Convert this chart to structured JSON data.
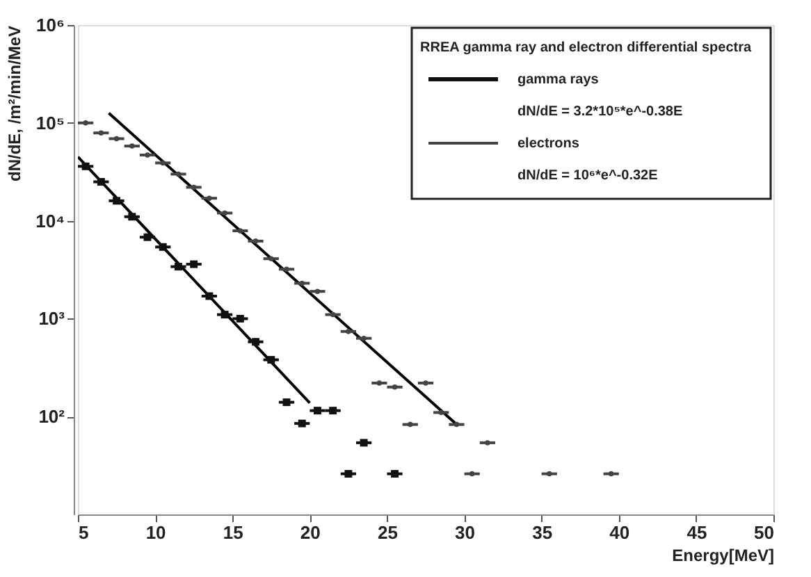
{
  "chart_data": {
    "type": "scatter",
    "xlabel": "Energy[MeV]",
    "ylabel": "dN/dE, /m²/min/MeV",
    "log": "y",
    "legend": "top right",
    "legend_title": "RREA gamma ray and electron differential spectra",
    "xlim": [
      5,
      50
    ],
    "xticks": [
      5,
      10,
      15,
      20,
      25,
      30,
      35,
      40,
      45,
      50
    ],
    "ylim": [
      10,
      1000000
    ],
    "yticks": [
      {
        "value": 100,
        "label": "10²"
      },
      {
        "value": 1000,
        "label": "10³"
      },
      {
        "value": 10000,
        "label": "10⁴"
      },
      {
        "value": 100000,
        "label": "10⁵"
      },
      {
        "value": 1000000,
        "label": "10⁶"
      }
    ],
    "annotations": [
      "dN/dE = 3.2*10⁵*e^-0.38E",
      "dN/dE = 10⁶*e^-0.32E"
    ],
    "series": [
      {
        "name": "gamma rays",
        "marker": "square",
        "color": "#111111",
        "x": [
          5.5,
          6.5,
          7.5,
          8.5,
          9.5,
          10.5,
          11.5,
          12.5,
          13.5,
          14.5,
          15.5,
          16.5,
          17.5,
          18.5,
          19.5,
          20.5,
          21.5,
          22.5,
          23.5,
          25.5
        ],
        "values": [
          36000,
          25000,
          16000,
          11000,
          6800,
          5400,
          3400,
          3600,
          1700,
          1100,
          1000,
          580,
          380,
          140,
          85,
          115,
          115,
          26,
          54,
          26
        ],
        "xerrors": [
          0.5,
          0.5,
          0.5,
          0.5,
          0.5,
          0.5,
          0.5,
          0.5,
          0.5,
          0.5,
          0.5,
          0.5,
          0.5,
          0.5,
          0.5,
          0.5,
          0.5,
          0.5,
          0.5,
          0.5
        ]
      },
      {
        "name": "electrons",
        "marker": "circle",
        "color": "#444444",
        "x": [
          5.5,
          6.5,
          7.5,
          8.5,
          9.5,
          10.5,
          11.5,
          12.5,
          13.5,
          14.5,
          15.5,
          16.5,
          17.5,
          18.5,
          19.5,
          20.5,
          21.5,
          22.5,
          23.5,
          24.5,
          25.5,
          26.5,
          27.5,
          28.5,
          29.5,
          30.5,
          31.5,
          35.5,
          39.5
        ],
        "values": [
          100000,
          79000,
          69000,
          58000,
          47000,
          39000,
          30000,
          22000,
          17000,
          12000,
          7900,
          6200,
          4100,
          3200,
          2300,
          1900,
          1100,
          740,
          630,
          220,
          200,
          83,
          220,
          110,
          83,
          26,
          54,
          26,
          26
        ],
        "xerrors": [
          0.5,
          0.5,
          0.5,
          0.5,
          0.5,
          0.5,
          0.5,
          0.5,
          0.5,
          0.5,
          0.5,
          0.5,
          0.5,
          0.5,
          0.5,
          0.5,
          0.5,
          0.5,
          0.5,
          0.5,
          0.5,
          0.5,
          0.5,
          0.5,
          0.5,
          0.5,
          0.5,
          0.5,
          0.5
        ]
      },
      {
        "type": "line",
        "color": "#000000",
        "x": [
          5,
          20
        ],
        "values": [
          45000,
          138
        ]
      },
      {
        "type": "line",
        "color": "#000000",
        "x": [
          7,
          29.5
        ],
        "values": [
          126000,
          83
        ]
      }
    ]
  }
}
